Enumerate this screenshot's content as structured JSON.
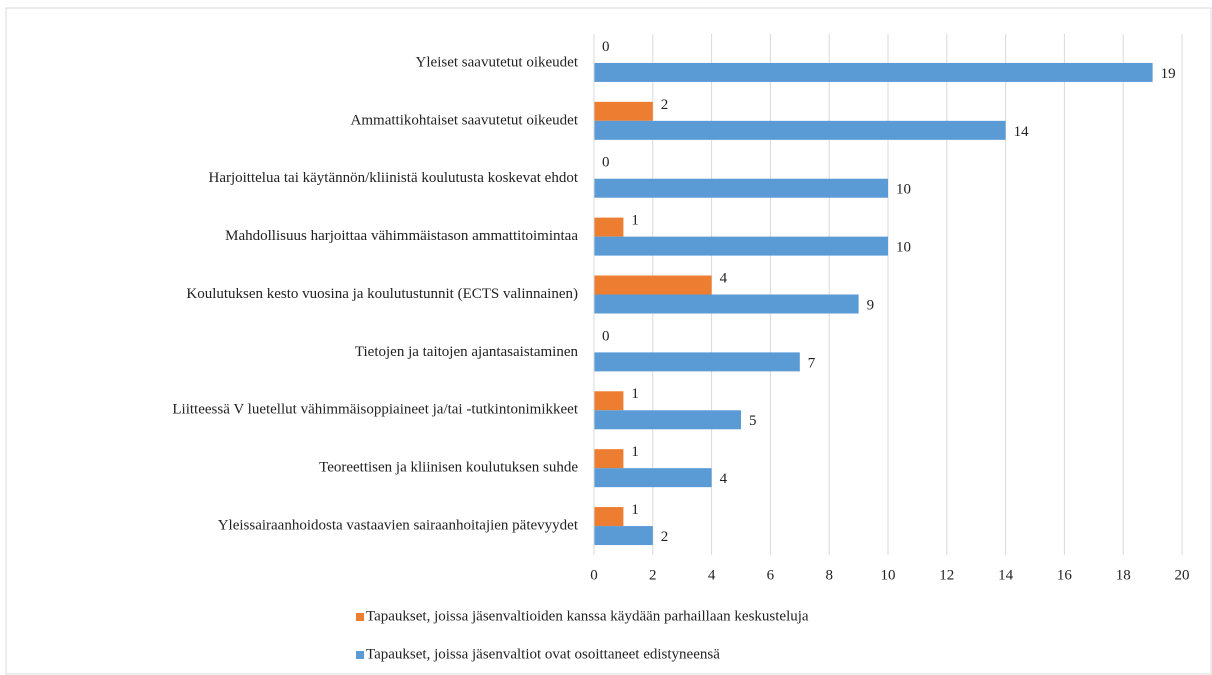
{
  "chart_data": {
    "type": "barh",
    "categories": [
      "Yleiset saavutetut oikeudet",
      "Ammattikohtaiset saavutetut oikeudet",
      "Harjoittelua tai käytännön/kliinistä koulutusta koskevat ehdot",
      "Mahdollisuus harjoittaa vähimmäistason ammattitoimintaa",
      "Koulutuksen kesto vuosina ja koulutustunnit (ECTS valinnainen)",
      "Tietojen ja taitojen ajantasaistaminen",
      "Liitteessä V luetellut vähimmäisoppiaineet ja/tai -tutkintonimikkeet",
      "Teoreettisen ja kliinisen koulutuksen suhde",
      "Yleissairaanhoidosta vastaavien sairaanhoitajien pätevyydet"
    ],
    "series": [
      {
        "name": "Tapaukset, joissa jäsenvaltioiden kanssa käydään parhaillaan keskusteluja",
        "color": "#ed7d31",
        "values": [
          0,
          2,
          0,
          1,
          4,
          0,
          1,
          1,
          1
        ]
      },
      {
        "name": "Tapaukset, joissa jäsenvaltiot ovat osoittaneet edistyneensä",
        "color": "#5b9bd5",
        "values": [
          19,
          14,
          10,
          10,
          9,
          7,
          5,
          4,
          2
        ]
      }
    ],
    "xlim": [
      0,
      20
    ],
    "xticks": [
      0,
      2,
      4,
      6,
      8,
      10,
      12,
      14,
      16,
      18,
      20
    ],
    "grid": true,
    "legend": "bottom"
  }
}
